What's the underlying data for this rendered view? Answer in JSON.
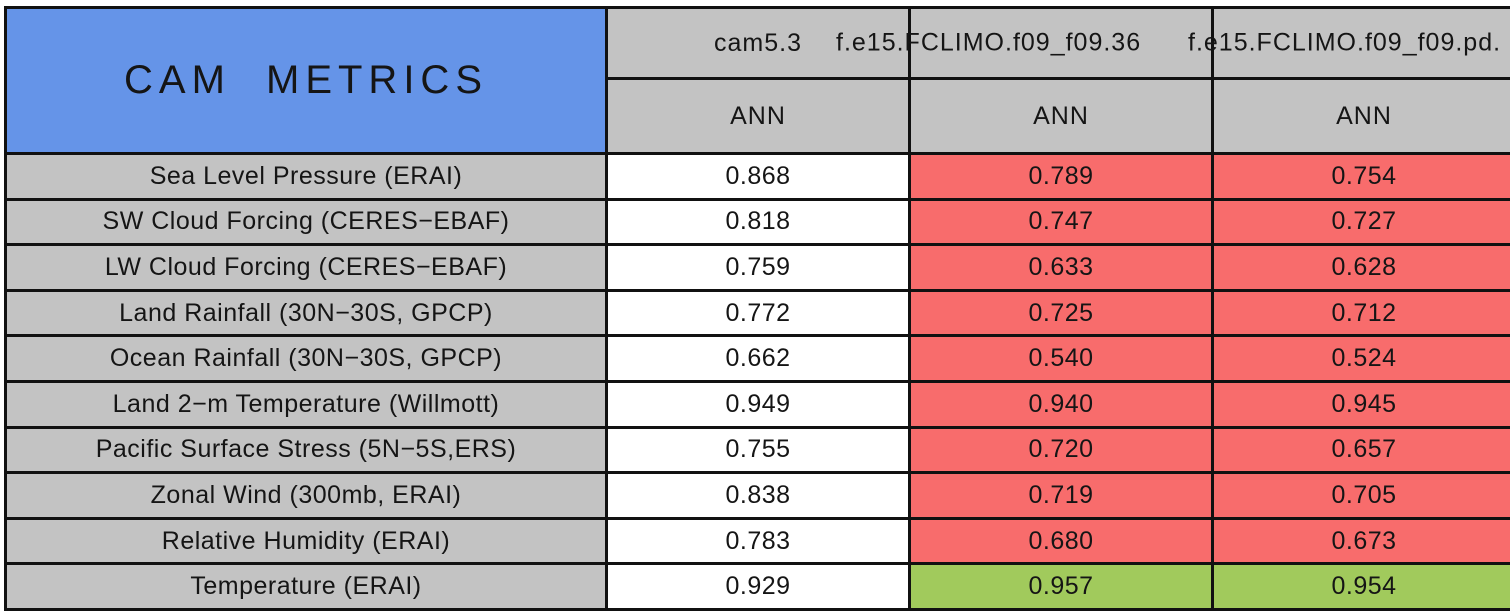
{
  "title": "CAM METRICS",
  "columns": [
    {
      "run": "cam5.3",
      "season": "ANN"
    },
    {
      "run": "f.e15.FCLIMO.f09_f09.36",
      "season": "ANN"
    },
    {
      "run": "f.e15.FCLIMO.f09_f09.pd.",
      "season": "ANN"
    }
  ],
  "rows": [
    {
      "label": "Sea Level Pressure (ERAI)",
      "values": [
        "0.868",
        "0.789",
        "0.754"
      ],
      "status": [
        "base",
        "worse",
        "worse"
      ]
    },
    {
      "label": "SW Cloud Forcing (CERES−EBAF)",
      "values": [
        "0.818",
        "0.747",
        "0.727"
      ],
      "status": [
        "base",
        "worse",
        "worse"
      ]
    },
    {
      "label": "LW Cloud Forcing (CERES−EBAF)",
      "values": [
        "0.759",
        "0.633",
        "0.628"
      ],
      "status": [
        "base",
        "worse",
        "worse"
      ]
    },
    {
      "label": "Land Rainfall (30N−30S, GPCP)",
      "values": [
        "0.772",
        "0.725",
        "0.712"
      ],
      "status": [
        "base",
        "worse",
        "worse"
      ]
    },
    {
      "label": "Ocean Rainfall (30N−30S, GPCP)",
      "values": [
        "0.662",
        "0.540",
        "0.524"
      ],
      "status": [
        "base",
        "worse",
        "worse"
      ]
    },
    {
      "label": "Land 2−m Temperature (Willmott)",
      "values": [
        "0.949",
        "0.940",
        "0.945"
      ],
      "status": [
        "base",
        "worse",
        "worse"
      ]
    },
    {
      "label": "Pacific Surface Stress (5N−5S,ERS)",
      "values": [
        "0.755",
        "0.720",
        "0.657"
      ],
      "status": [
        "base",
        "worse",
        "worse"
      ]
    },
    {
      "label": "Zonal Wind (300mb, ERAI)",
      "values": [
        "0.838",
        "0.719",
        "0.705"
      ],
      "status": [
        "base",
        "worse",
        "worse"
      ]
    },
    {
      "label": "Relative Humidity (ERAI)",
      "values": [
        "0.783",
        "0.680",
        "0.673"
      ],
      "status": [
        "base",
        "worse",
        "worse"
      ]
    },
    {
      "label": "Temperature (ERAI)",
      "values": [
        "0.929",
        "0.957",
        "0.954"
      ],
      "status": [
        "base",
        "better",
        "better"
      ]
    }
  ],
  "colors": {
    "header_blue": "#6594E8",
    "cell_gray": "#C3C3C3",
    "worse_red": "#F86C6C",
    "better_green": "#A1CA5C",
    "base_white": "#FFFFFF",
    "grid_black": "#111111"
  }
}
